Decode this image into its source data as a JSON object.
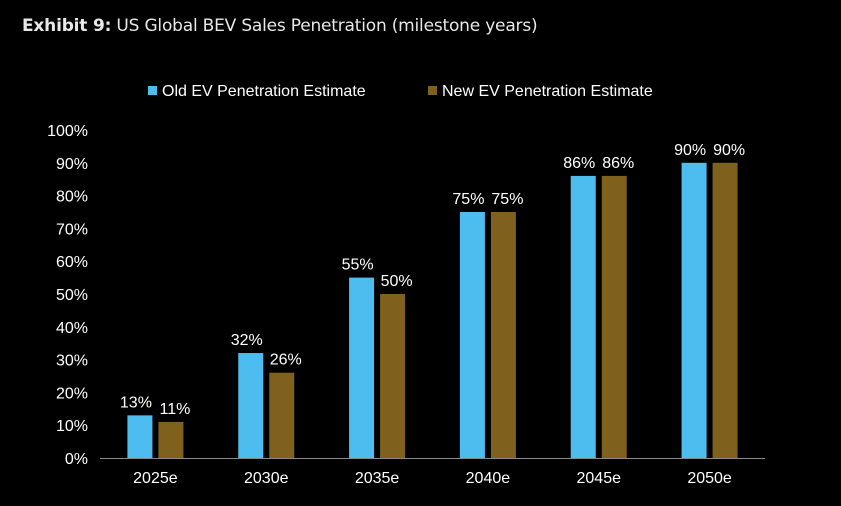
{
  "header": {
    "exhibit_label": "Exhibit 9:",
    "exhibit_title": "US Global BEV Sales Penetration (milestone years)"
  },
  "chart_data": {
    "type": "bar",
    "title": "US Global BEV Sales Penetration (milestone years)",
    "categories": [
      "2025e",
      "2030e",
      "2035e",
      "2040e",
      "2045e",
      "2050e"
    ],
    "series": [
      {
        "name": "Old EV Penetration Estimate",
        "color": "#4cbdee",
        "values": [
          13,
          32,
          55,
          75,
          86,
          90
        ],
        "labels": [
          "13%",
          "32%",
          "55%",
          "75%",
          "86%",
          "90%"
        ]
      },
      {
        "name": "New EV Penetration Estimate",
        "color": "#7f601c",
        "values": [
          11,
          26,
          50,
          75,
          86,
          90
        ],
        "labels": [
          "11%",
          "26%",
          "50%",
          "75%",
          "86%",
          "90%"
        ]
      }
    ],
    "ylim": [
      0,
      100
    ],
    "yticks": [
      "0%",
      "10%",
      "20%",
      "30%",
      "40%",
      "50%",
      "60%",
      "70%",
      "80%",
      "90%",
      "100%"
    ],
    "xlabel": "",
    "ylabel": "",
    "legend_position": "top-center",
    "grid": false,
    "axis_color": "#8a8a8a"
  }
}
